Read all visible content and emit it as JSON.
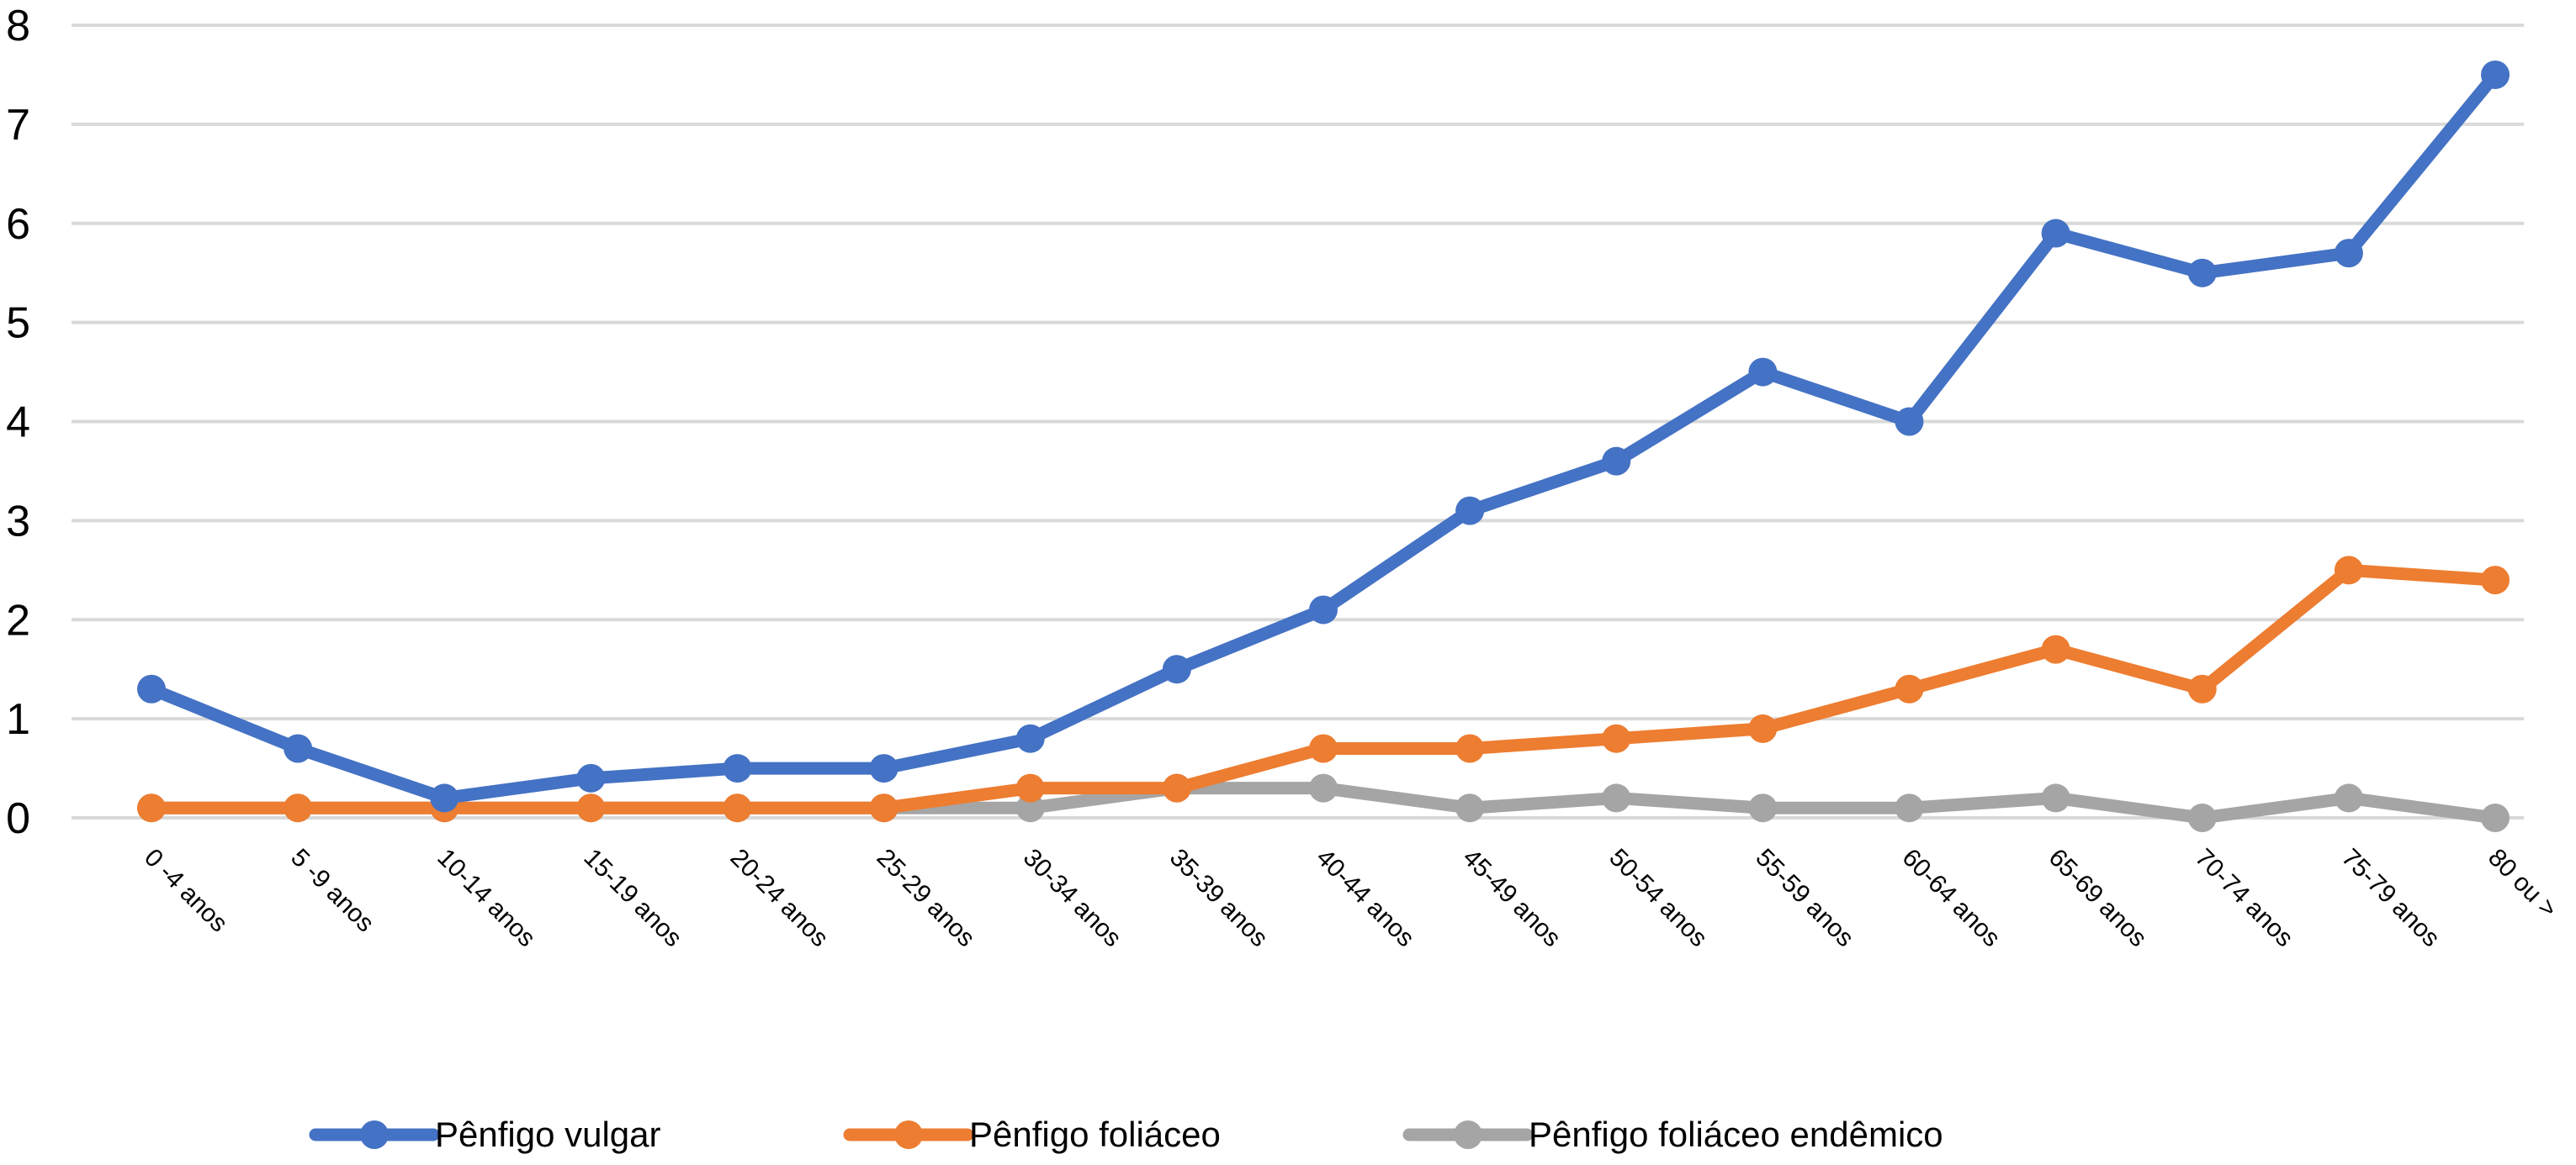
{
  "chart_data": {
    "type": "line",
    "categories": [
      "0 -4  anos",
      "5 -9  anos",
      "10-14 anos",
      "15-19 anos",
      "20-24 anos",
      "25-29 anos",
      "30-34 anos",
      "35-39 anos",
      "40-44 anos",
      "45-49 anos",
      "50-54 anos",
      "55-59 anos",
      "60-64 anos",
      "65-69 anos",
      "70-74 anos",
      "75-79 anos",
      "80 ou >"
    ],
    "series": [
      {
        "name": "Pênfigo vulgar",
        "color": "#4472C4",
        "values": [
          1.3,
          0.7,
          0.2,
          0.4,
          0.5,
          0.5,
          0.8,
          1.5,
          2.1,
          3.1,
          3.6,
          4.5,
          4.0,
          5.9,
          5.5,
          5.7,
          7.5
        ]
      },
      {
        "name": "Pênfigo foliáceo",
        "color": "#ED7D31",
        "values": [
          0.1,
          0.1,
          0.1,
          0.1,
          0.1,
          0.1,
          0.3,
          0.3,
          0.7,
          0.7,
          0.8,
          0.9,
          1.3,
          1.7,
          1.3,
          2.5,
          2.4
        ]
      },
      {
        "name": "Pênfigo foliáceo endêmico",
        "color": "#A5A5A5",
        "values": [
          0.1,
          0.1,
          0.1,
          0.1,
          0.1,
          0.1,
          0.1,
          0.3,
          0.3,
          0.1,
          0.2,
          0.1,
          0.1,
          0.2,
          0.0,
          0.2,
          0.0
        ]
      }
    ],
    "yticks": [
      "0",
      "1",
      "2",
      "3",
      "4",
      "5",
      "6",
      "7",
      "8"
    ],
    "ylim": [
      0,
      8
    ],
    "grid": true,
    "gridColor": "#D9D9D9",
    "legend": "bottom"
  }
}
